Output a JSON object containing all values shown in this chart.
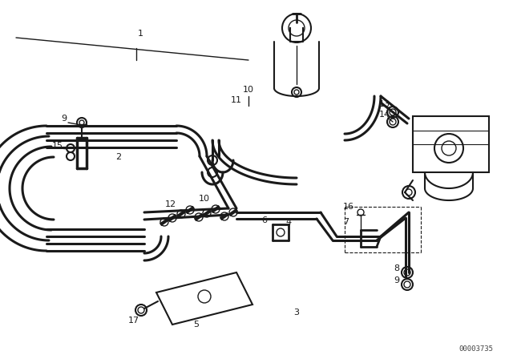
{
  "bg_color": "#ffffff",
  "line_color": "#1a1a1a",
  "part_number_text": "00003735",
  "lw_thin": 1.0,
  "lw_pipe": 2.2,
  "lw_med": 1.5
}
